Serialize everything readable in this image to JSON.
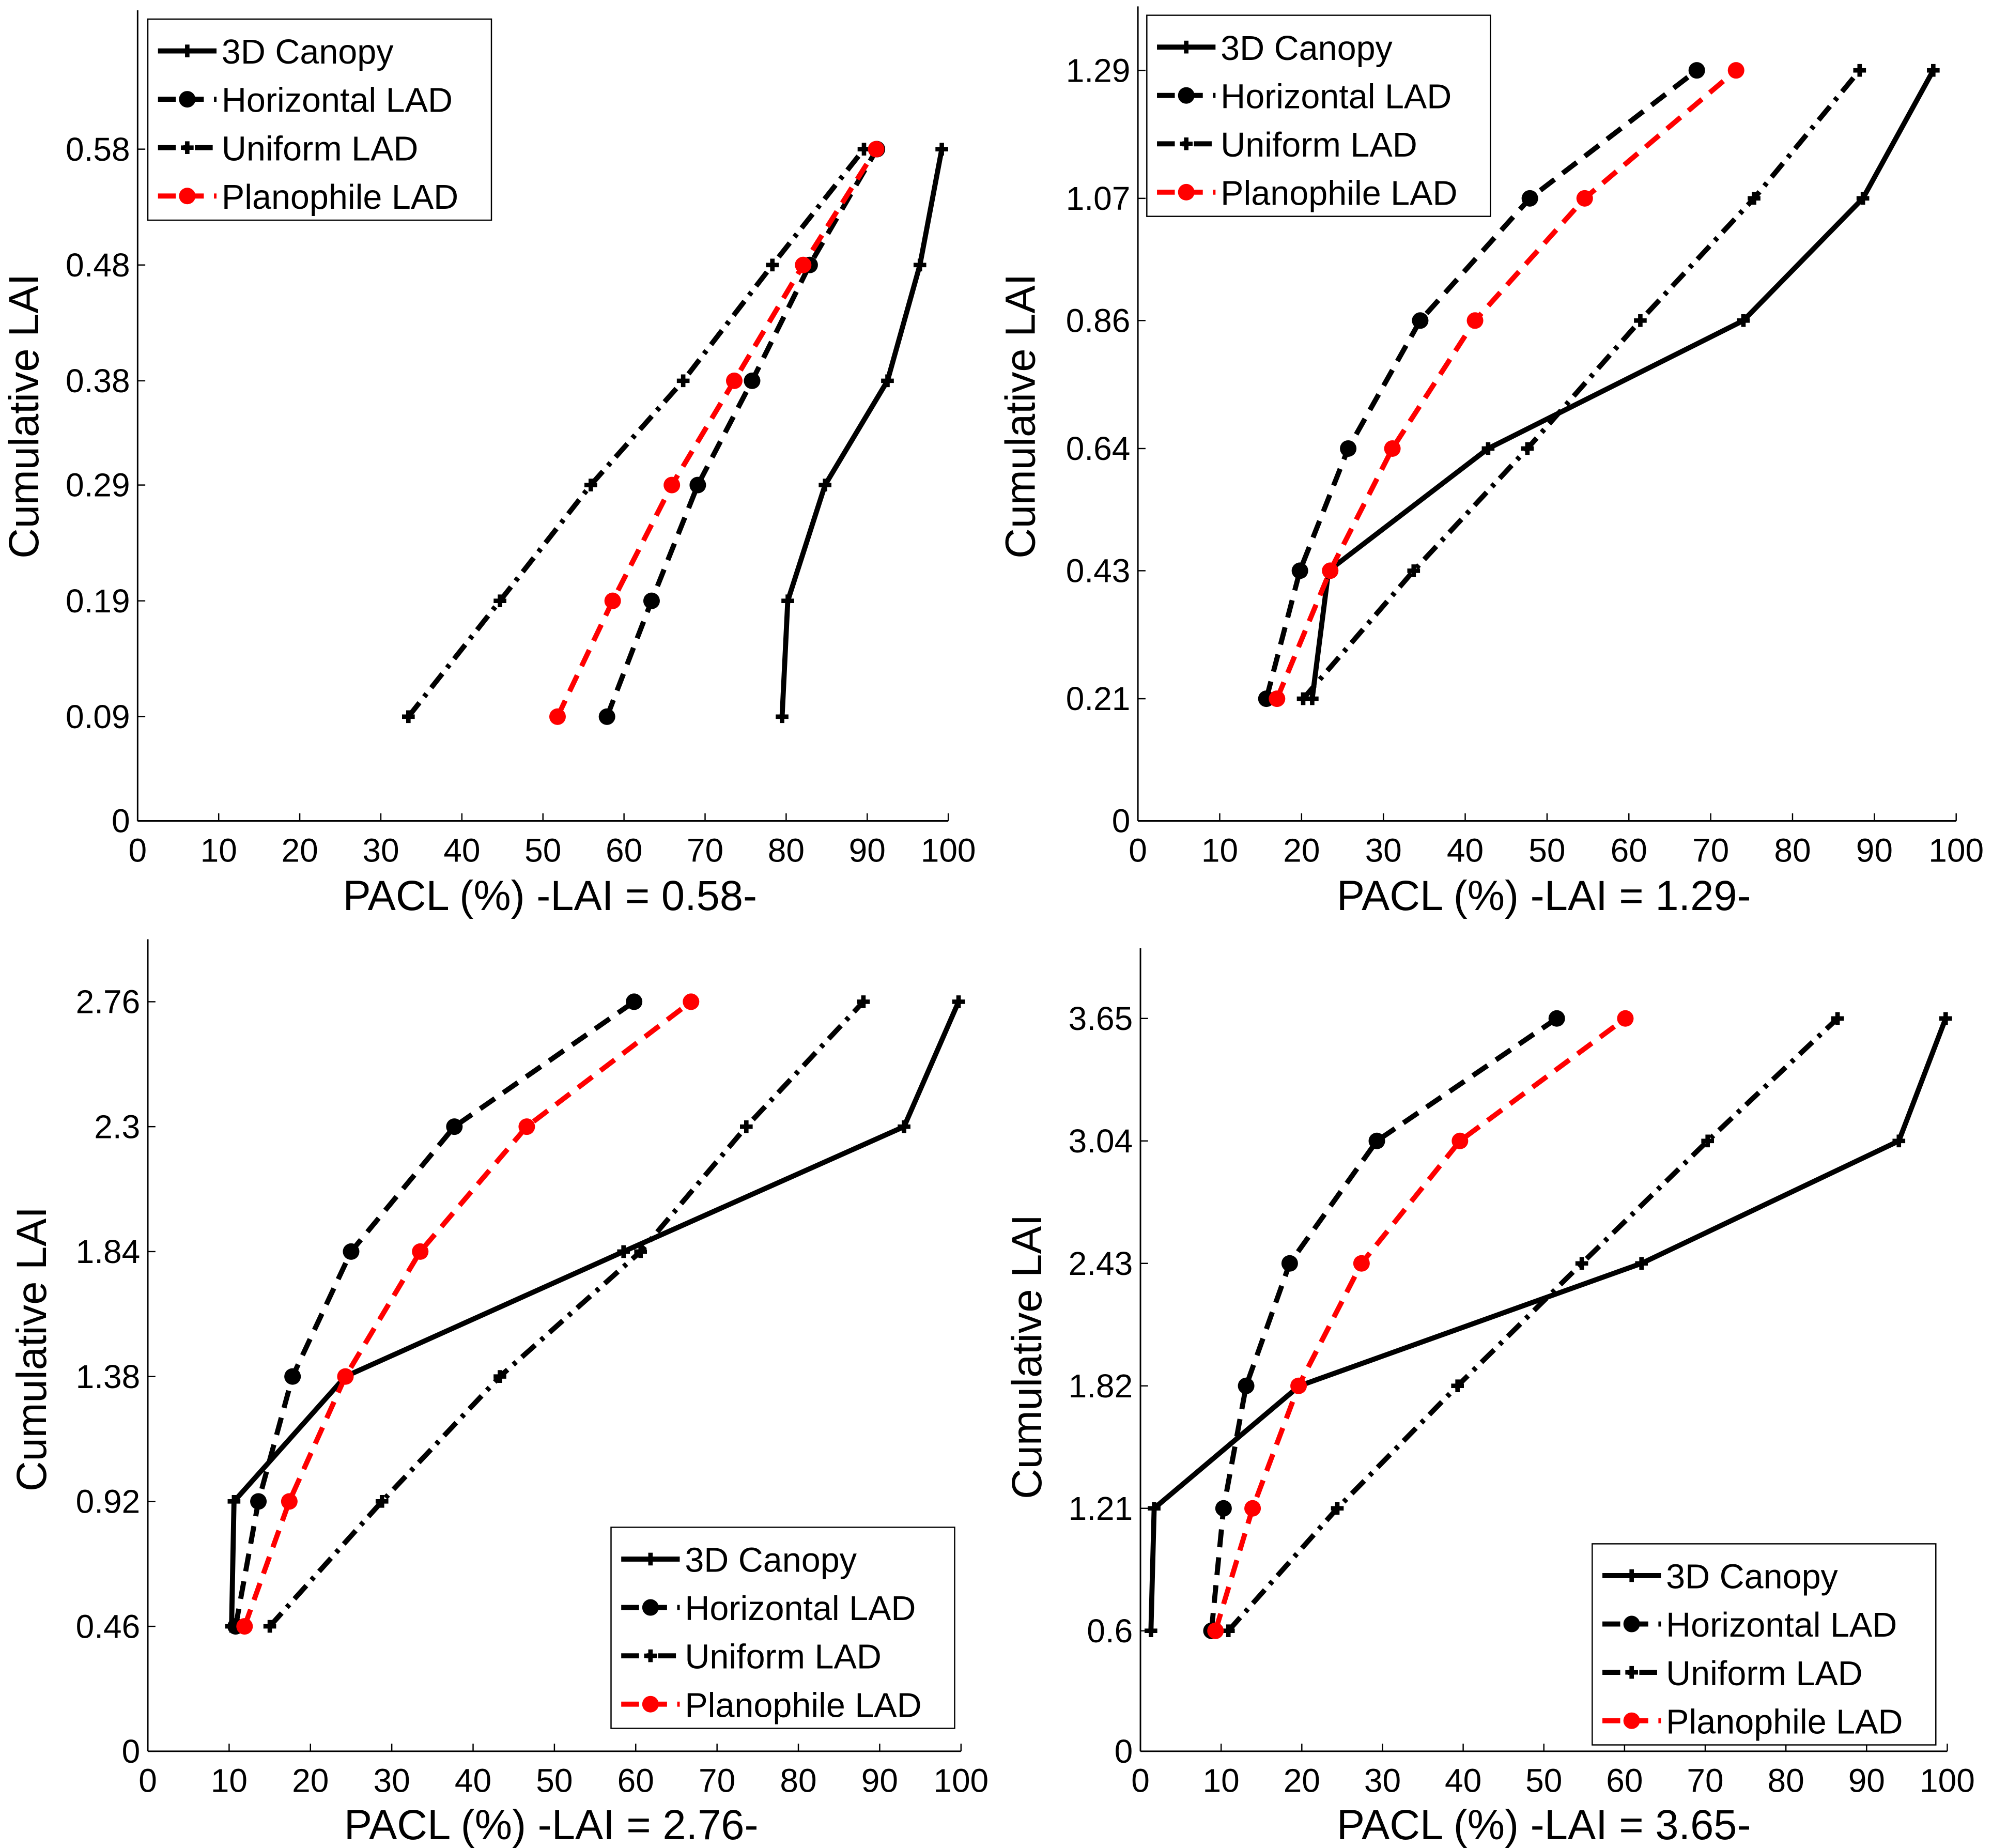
{
  "colors": {
    "black": "#000000",
    "red": "#ff0000"
  },
  "series_styles": [
    {
      "name": "3D Canopy",
      "color": "#000000",
      "dash": "solid",
      "marker": "plus"
    },
    {
      "name": "Horizontal LAD",
      "color": "#000000",
      "dash": "dashed",
      "marker": "circle"
    },
    {
      "name": "Uniform LAD",
      "color": "#000000",
      "dash": "dash-dot",
      "marker": "plus"
    },
    {
      "name": "Planophile LAD",
      "color": "#ff0000",
      "dash": "dashed",
      "marker": "circle"
    }
  ],
  "chart_data": [
    {
      "type": "line",
      "xlabel": "PACL (%) -LAI = 0.58-",
      "ylabel": "Cumulative LAI",
      "xlim": [
        0,
        100
      ],
      "ylim": [
        0,
        0.7
      ],
      "xticks": [
        "0",
        "10",
        "20",
        "30",
        "40",
        "50",
        "60",
        "70",
        "80",
        "90",
        "100"
      ],
      "yticks": [
        "0",
        "0.09",
        "0.19",
        "0.29",
        "0.38",
        "0.48",
        "0.58"
      ],
      "legend": "top-left",
      "y": [
        0.09,
        0.19,
        0.29,
        0.38,
        0.48,
        0.58
      ],
      "series": [
        {
          "name": "3D Canopy",
          "x": [
            79.5,
            80.2,
            84.8,
            92.5,
            96.5,
            99.2
          ]
        },
        {
          "name": "Horizontal LAD",
          "x": [
            57.9,
            63.4,
            69.1,
            75.8,
            82.9,
            91.2
          ]
        },
        {
          "name": "Uniform LAD",
          "x": [
            33.4,
            44.7,
            55.9,
            67.3,
            78.3,
            89.6
          ]
        },
        {
          "name": "Planophile LAD",
          "x": [
            51.8,
            58.6,
            65.9,
            73.6,
            82.1,
            91.1
          ]
        }
      ]
    },
    {
      "type": "line",
      "xlabel": "PACL (%) -LAI = 1.29-",
      "ylabel": "Cumulative LAI",
      "xlim": [
        0,
        100
      ],
      "ylim": [
        0,
        1.4
      ],
      "xticks": [
        "0",
        "10",
        "20",
        "30",
        "40",
        "50",
        "60",
        "70",
        "80",
        "90",
        "100"
      ],
      "yticks": [
        "0",
        "0.21",
        "0.43",
        "0.64",
        "0.86",
        "1.07",
        "1.29"
      ],
      "legend": "top-left",
      "y": [
        0.21,
        0.43,
        0.64,
        0.86,
        1.07,
        1.29
      ],
      "series": [
        {
          "name": "3D Canopy",
          "x": [
            21.3,
            23.3,
            42.8,
            74.0,
            88.6,
            97.2
          ]
        },
        {
          "name": "Horizontal LAD",
          "x": [
            15.7,
            19.8,
            25.7,
            34.5,
            47.9,
            68.3
          ]
        },
        {
          "name": "Uniform LAD",
          "x": [
            20.2,
            33.7,
            47.6,
            61.4,
            75.3,
            88.2
          ]
        },
        {
          "name": "Planophile LAD",
          "x": [
            17.0,
            23.5,
            31.1,
            41.2,
            54.6,
            73.1
          ]
        }
      ]
    },
    {
      "type": "line",
      "xlabel": "PACL (%) -LAI = 2.76-",
      "ylabel": "Cumulative LAI",
      "xlim": [
        0,
        100
      ],
      "ylim": [
        0,
        2.99
      ],
      "xticks": [
        "0",
        "10",
        "20",
        "30",
        "40",
        "50",
        "60",
        "70",
        "80",
        "90",
        "100"
      ],
      "yticks": [
        "0",
        "0.46",
        "0.92",
        "1.38",
        "1.84",
        "2.3",
        "2.76"
      ],
      "legend": "bottom-right",
      "y": [
        0.46,
        0.92,
        1.38,
        1.84,
        2.3,
        2.76
      ],
      "series": [
        {
          "name": "3D Canopy",
          "x": [
            10.3,
            10.6,
            24.3,
            58.5,
            93.0,
            99.7
          ]
        },
        {
          "name": "Horizontal LAD",
          "x": [
            10.8,
            13.6,
            17.8,
            25.0,
            37.7,
            59.8
          ]
        },
        {
          "name": "Uniform LAD",
          "x": [
            15.0,
            28.8,
            43.3,
            60.6,
            73.6,
            88.0
          ]
        },
        {
          "name": "Planophile LAD",
          "x": [
            11.9,
            17.4,
            24.3,
            33.5,
            46.6,
            66.8
          ]
        }
      ]
    },
    {
      "type": "line",
      "xlabel": "PACL (%) -LAI = 3.65-",
      "ylabel": "Cumulative LAI",
      "xlim": [
        0,
        100
      ],
      "ylim": [
        0,
        4.0
      ],
      "xticks": [
        "0",
        "10",
        "20",
        "30",
        "40",
        "50",
        "60",
        "70",
        "80",
        "90",
        "100"
      ],
      "yticks": [
        "0",
        "0.6",
        "1.21",
        "1.82",
        "2.43",
        "3.04",
        "3.65"
      ],
      "legend": "bottom-right",
      "y": [
        0.6,
        1.21,
        1.82,
        2.43,
        3.04,
        3.65
      ],
      "series": [
        {
          "name": "3D Canopy",
          "x": [
            1.3,
            1.7,
            19.7,
            62.1,
            94.0,
            99.8
          ]
        },
        {
          "name": "Horizontal LAD",
          "x": [
            8.8,
            10.3,
            13.1,
            18.5,
            29.3,
            51.6
          ]
        },
        {
          "name": "Uniform LAD",
          "x": [
            10.9,
            24.4,
            39.3,
            54.7,
            70.3,
            86.4
          ]
        },
        {
          "name": "Planophile LAD",
          "x": [
            9.3,
            13.9,
            19.6,
            27.4,
            39.6,
            60.1
          ]
        }
      ]
    }
  ]
}
